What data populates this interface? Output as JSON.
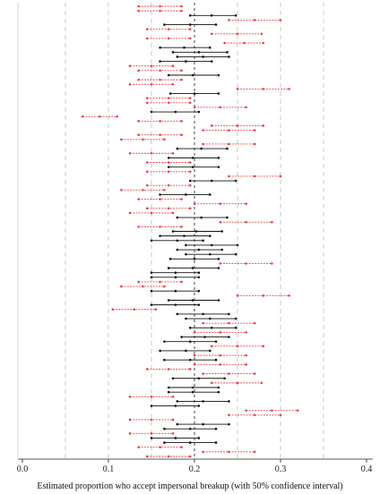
{
  "chart_data": {
    "type": "interval",
    "xlabel": "Estimated proportion who accept impersonal breakup (with 50% confidence interval)",
    "xlim": [
      0.0,
      0.4
    ],
    "xticks": [
      0.0,
      0.1,
      0.2,
      0.3,
      0.4
    ],
    "xtick_labels": [
      "0.0",
      "0.1",
      "0.2",
      "0.3",
      "0.4"
    ],
    "gridlines_x": [
      0.05,
      0.1,
      0.15,
      0.2,
      0.25,
      0.3,
      0.35
    ],
    "reference_line": 0.2,
    "colors": {
      "significant": "#e8474e",
      "not_significant": "#111111",
      "grid": "#bbbbbb",
      "reference": "#333333"
    },
    "intervals": [
      {
        "low": 0.135,
        "est": 0.16,
        "high": 0.185,
        "color": "red"
      },
      {
        "low": 0.135,
        "est": 0.16,
        "high": 0.185,
        "color": "red"
      },
      {
        "low": 0.195,
        "est": 0.22,
        "high": 0.248,
        "color": "black"
      },
      {
        "low": 0.24,
        "est": 0.27,
        "high": 0.3,
        "color": "red"
      },
      {
        "low": 0.165,
        "est": 0.195,
        "high": 0.225,
        "color": "black"
      },
      {
        "low": 0.145,
        "est": 0.17,
        "high": 0.195,
        "color": "red"
      },
      {
        "low": 0.22,
        "est": 0.25,
        "high": 0.278,
        "color": "red"
      },
      {
        "low": 0.145,
        "est": 0.17,
        "high": 0.195,
        "color": "red"
      },
      {
        "low": 0.235,
        "est": 0.258,
        "high": 0.28,
        "color": "red"
      },
      {
        "low": 0.16,
        "est": 0.188,
        "high": 0.218,
        "color": "black"
      },
      {
        "low": 0.175,
        "est": 0.205,
        "high": 0.238,
        "color": "black"
      },
      {
        "low": 0.18,
        "est": 0.21,
        "high": 0.24,
        "color": "black"
      },
      {
        "low": 0.16,
        "est": 0.19,
        "high": 0.22,
        "color": "black"
      },
      {
        "low": 0.125,
        "est": 0.15,
        "high": 0.175,
        "color": "red"
      },
      {
        "low": 0.135,
        "est": 0.16,
        "high": 0.185,
        "color": "red"
      },
      {
        "low": 0.17,
        "est": 0.198,
        "high": 0.228,
        "color": "black"
      },
      {
        "low": 0.135,
        "est": 0.16,
        "high": 0.185,
        "color": "red"
      },
      {
        "low": 0.125,
        "est": 0.15,
        "high": 0.175,
        "color": "red"
      },
      {
        "low": 0.25,
        "est": 0.28,
        "high": 0.31,
        "color": "red"
      },
      {
        "low": 0.172,
        "est": 0.2,
        "high": 0.228,
        "color": "black"
      },
      {
        "low": 0.145,
        "est": 0.17,
        "high": 0.195,
        "color": "red"
      },
      {
        "low": 0.145,
        "est": 0.17,
        "high": 0.195,
        "color": "red"
      },
      {
        "low": 0.2,
        "est": 0.23,
        "high": 0.26,
        "color": "red"
      },
      {
        "low": 0.15,
        "est": 0.178,
        "high": 0.205,
        "color": "black"
      },
      {
        "low": 0.07,
        "est": 0.09,
        "high": 0.11,
        "color": "red"
      },
      {
        "low": 0.135,
        "est": 0.16,
        "high": 0.185,
        "color": "red"
      },
      {
        "low": 0.22,
        "est": 0.25,
        "high": 0.28,
        "color": "red"
      },
      {
        "low": 0.21,
        "est": 0.24,
        "high": 0.27,
        "color": "red"
      },
      {
        "low": 0.135,
        "est": 0.16,
        "high": 0.185,
        "color": "red"
      },
      {
        "low": 0.115,
        "est": 0.14,
        "high": 0.165,
        "color": "red"
      },
      {
        "low": 0.21,
        "est": 0.24,
        "high": 0.27,
        "color": "red"
      },
      {
        "low": 0.18,
        "est": 0.208,
        "high": 0.238,
        "color": "black"
      },
      {
        "low": 0.125,
        "est": 0.15,
        "high": 0.175,
        "color": "red"
      },
      {
        "low": 0.17,
        "est": 0.198,
        "high": 0.228,
        "color": "black"
      },
      {
        "low": 0.145,
        "est": 0.17,
        "high": 0.195,
        "color": "red"
      },
      {
        "low": 0.17,
        "est": 0.198,
        "high": 0.228,
        "color": "black"
      },
      {
        "low": 0.145,
        "est": 0.17,
        "high": 0.195,
        "color": "red"
      },
      {
        "low": 0.24,
        "est": 0.27,
        "high": 0.3,
        "color": "red"
      },
      {
        "low": 0.195,
        "est": 0.22,
        "high": 0.248,
        "color": "black"
      },
      {
        "low": 0.145,
        "est": 0.17,
        "high": 0.195,
        "color": "red"
      },
      {
        "low": 0.115,
        "est": 0.14,
        "high": 0.165,
        "color": "red"
      },
      {
        "low": 0.16,
        "est": 0.19,
        "high": 0.218,
        "color": "black"
      },
      {
        "low": 0.135,
        "est": 0.16,
        "high": 0.185,
        "color": "red"
      },
      {
        "low": 0.2,
        "est": 0.23,
        "high": 0.26,
        "color": "red"
      },
      {
        "low": 0.145,
        "est": 0.17,
        "high": 0.195,
        "color": "red"
      },
      {
        "low": 0.125,
        "est": 0.15,
        "high": 0.175,
        "color": "red"
      },
      {
        "low": 0.18,
        "est": 0.208,
        "high": 0.238,
        "color": "black"
      },
      {
        "low": 0.23,
        "est": 0.26,
        "high": 0.29,
        "color": "red"
      },
      {
        "low": 0.135,
        "est": 0.16,
        "high": 0.185,
        "color": "red"
      },
      {
        "low": 0.175,
        "est": 0.202,
        "high": 0.232,
        "color": "black"
      },
      {
        "low": 0.16,
        "est": 0.188,
        "high": 0.218,
        "color": "black"
      },
      {
        "low": 0.15,
        "est": 0.18,
        "high": 0.21,
        "color": "black"
      },
      {
        "low": 0.19,
        "est": 0.22,
        "high": 0.25,
        "color": "black"
      },
      {
        "low": 0.18,
        "est": 0.205,
        "high": 0.232,
        "color": "black"
      },
      {
        "low": 0.19,
        "est": 0.218,
        "high": 0.248,
        "color": "black"
      },
      {
        "low": 0.172,
        "est": 0.2,
        "high": 0.228,
        "color": "black"
      },
      {
        "low": 0.23,
        "est": 0.26,
        "high": 0.29,
        "color": "red"
      },
      {
        "low": 0.17,
        "est": 0.198,
        "high": 0.228,
        "color": "black"
      },
      {
        "low": 0.15,
        "est": 0.178,
        "high": 0.205,
        "color": "black"
      },
      {
        "low": 0.15,
        "est": 0.178,
        "high": 0.205,
        "color": "black"
      },
      {
        "low": 0.135,
        "est": 0.16,
        "high": 0.185,
        "color": "red"
      },
      {
        "low": 0.115,
        "est": 0.14,
        "high": 0.165,
        "color": "red"
      },
      {
        "low": 0.15,
        "est": 0.178,
        "high": 0.205,
        "color": "black"
      },
      {
        "low": 0.25,
        "est": 0.28,
        "high": 0.31,
        "color": "red"
      },
      {
        "low": 0.17,
        "est": 0.198,
        "high": 0.228,
        "color": "black"
      },
      {
        "low": 0.15,
        "est": 0.178,
        "high": 0.205,
        "color": "black"
      },
      {
        "low": 0.105,
        "est": 0.13,
        "high": 0.155,
        "color": "red"
      },
      {
        "low": 0.18,
        "est": 0.21,
        "high": 0.24,
        "color": "black"
      },
      {
        "low": 0.19,
        "est": 0.218,
        "high": 0.248,
        "color": "black"
      },
      {
        "low": 0.21,
        "est": 0.24,
        "high": 0.27,
        "color": "red"
      },
      {
        "low": 0.195,
        "est": 0.22,
        "high": 0.248,
        "color": "black"
      },
      {
        "low": 0.2,
        "est": 0.23,
        "high": 0.26,
        "color": "red"
      },
      {
        "low": 0.185,
        "est": 0.212,
        "high": 0.24,
        "color": "black"
      },
      {
        "low": 0.165,
        "est": 0.195,
        "high": 0.225,
        "color": "black"
      },
      {
        "low": 0.22,
        "est": 0.25,
        "high": 0.28,
        "color": "red"
      },
      {
        "low": 0.16,
        "est": 0.19,
        "high": 0.218,
        "color": "black"
      },
      {
        "low": 0.2,
        "est": 0.23,
        "high": 0.26,
        "color": "red"
      },
      {
        "low": 0.165,
        "est": 0.195,
        "high": 0.225,
        "color": "black"
      },
      {
        "low": 0.2,
        "est": 0.23,
        "high": 0.26,
        "color": "red"
      },
      {
        "low": 0.145,
        "est": 0.17,
        "high": 0.195,
        "color": "red"
      },
      {
        "low": 0.21,
        "est": 0.24,
        "high": 0.27,
        "color": "red"
      },
      {
        "low": 0.175,
        "est": 0.205,
        "high": 0.235,
        "color": "black"
      },
      {
        "low": 0.22,
        "est": 0.25,
        "high": 0.278,
        "color": "red"
      },
      {
        "low": 0.17,
        "est": 0.198,
        "high": 0.228,
        "color": "black"
      },
      {
        "low": 0.17,
        "est": 0.198,
        "high": 0.228,
        "color": "black"
      },
      {
        "low": 0.125,
        "est": 0.15,
        "high": 0.175,
        "color": "red"
      },
      {
        "low": 0.18,
        "est": 0.21,
        "high": 0.24,
        "color": "black"
      },
      {
        "low": 0.15,
        "est": 0.178,
        "high": 0.205,
        "color": "black"
      },
      {
        "low": 0.26,
        "est": 0.29,
        "high": 0.32,
        "color": "red"
      },
      {
        "low": 0.24,
        "est": 0.27,
        "high": 0.3,
        "color": "red"
      },
      {
        "low": 0.125,
        "est": 0.15,
        "high": 0.175,
        "color": "red"
      },
      {
        "low": 0.18,
        "est": 0.21,
        "high": 0.24,
        "color": "black"
      },
      {
        "low": 0.165,
        "est": 0.195,
        "high": 0.225,
        "color": "black"
      },
      {
        "low": 0.125,
        "est": 0.15,
        "high": 0.175,
        "color": "red"
      },
      {
        "low": 0.15,
        "est": 0.178,
        "high": 0.205,
        "color": "black"
      },
      {
        "low": 0.165,
        "est": 0.195,
        "high": 0.225,
        "color": "black"
      },
      {
        "low": 0.135,
        "est": 0.16,
        "high": 0.185,
        "color": "red"
      },
      {
        "low": 0.21,
        "est": 0.24,
        "high": 0.27,
        "color": "red"
      },
      {
        "low": 0.145,
        "est": 0.17,
        "high": 0.195,
        "color": "red"
      }
    ]
  }
}
